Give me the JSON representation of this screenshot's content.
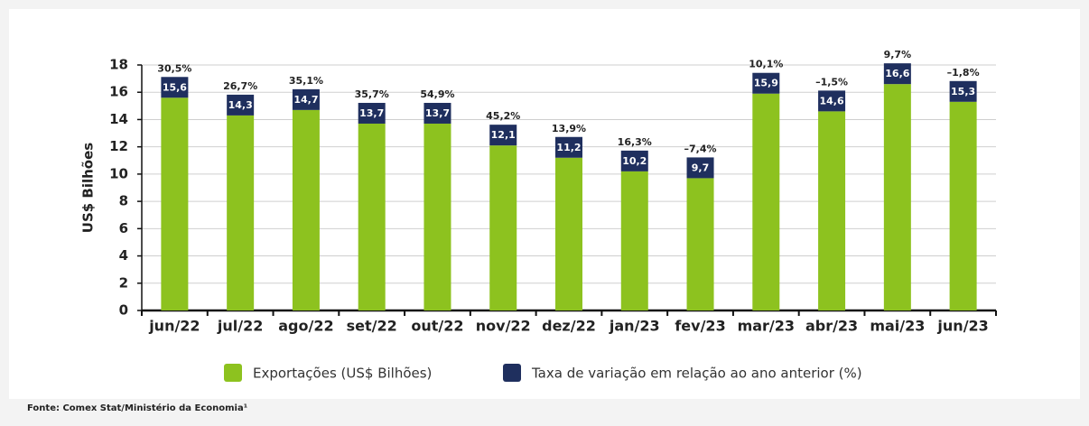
{
  "chart_data": {
    "type": "bar",
    "y_label": "US$ Bilhões",
    "source": "Fonte: Comex Stat/Ministério da Economia¹",
    "categories": [
      "jun/22",
      "jul/22",
      "ago/22",
      "set/22",
      "out/22",
      "nov/22",
      "dez/22",
      "jan/23",
      "fev/23",
      "mar/23",
      "abr/23",
      "mai/23",
      "jun/23"
    ],
    "series": [
      {
        "name": "Exportações (US$ Bilhões)",
        "color": "#8dc21f",
        "values": [
          15.6,
          14.3,
          14.7,
          13.7,
          13.7,
          12.1,
          11.2,
          10.2,
          9.7,
          15.9,
          14.6,
          16.6,
          15.3
        ],
        "value_labels": [
          "15,6",
          "14,3",
          "14,7",
          "13,7",
          "13,7",
          "12,1",
          "11,2",
          "10,2",
          "9,7",
          "15,9",
          "14,6",
          "16,6",
          "15,3"
        ]
      },
      {
        "name": "Taxa de variação em relação ao ano anterior (%)",
        "color": "#1f2f5e",
        "values": [
          30.5,
          26.7,
          35.1,
          35.7,
          54.9,
          45.2,
          13.9,
          16.3,
          -7.4,
          10.1,
          -1.5,
          9.7,
          -1.8
        ],
        "value_labels": [
          "30,5%",
          "26,7%",
          "35,1%",
          "35,7%",
          "54,9%",
          "45,2%",
          "13,9%",
          "16,3%",
          "–7,4%",
          "10,1%",
          "–1,5%",
          "9,7%",
          "–1,8%"
        ]
      }
    ],
    "ylim": [
      0,
      18
    ],
    "yticks": [
      0,
      2,
      4,
      6,
      8,
      10,
      12,
      14,
      16,
      18
    ],
    "grid": true
  }
}
